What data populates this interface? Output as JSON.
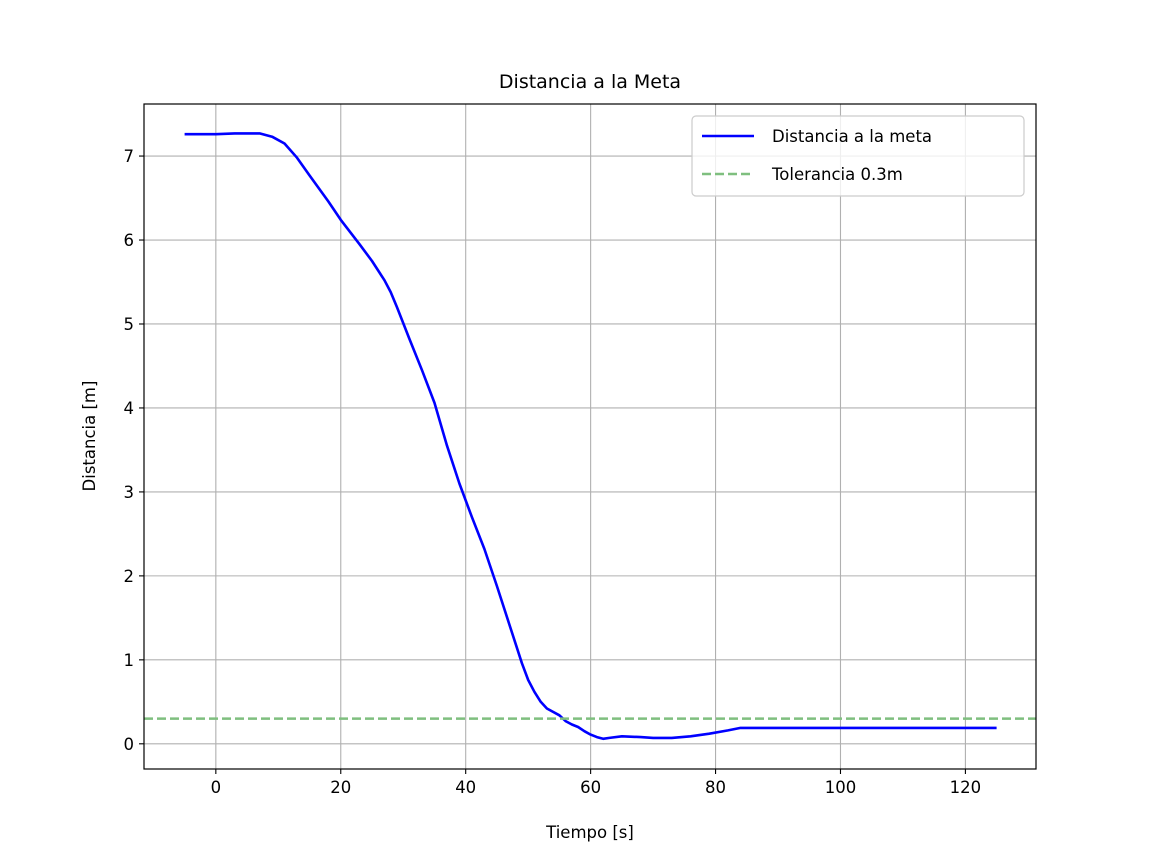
{
  "chart_data": {
    "type": "line",
    "title": "Distancia a la Meta",
    "xlabel": "Tiempo [s]",
    "ylabel": "Distancia [m]",
    "xlim": [
      -11.5,
      131.3
    ],
    "ylim": [
      -0.3,
      7.62
    ],
    "grid": true,
    "legend_position": "top-right",
    "xticks": [
      0,
      20,
      40,
      60,
      80,
      100,
      120
    ],
    "yticks": [
      0,
      1,
      2,
      3,
      4,
      5,
      6,
      7
    ],
    "series": [
      {
        "name": "Distancia a la meta",
        "color": "#0000ff",
        "style": "solid",
        "points": [
          [
            -5,
            7.26
          ],
          [
            0,
            7.26
          ],
          [
            3,
            7.27
          ],
          [
            7,
            7.27
          ],
          [
            9,
            7.23
          ],
          [
            11,
            7.15
          ],
          [
            13,
            6.98
          ],
          [
            15,
            6.77
          ],
          [
            18,
            6.46
          ],
          [
            20,
            6.24
          ],
          [
            23,
            5.95
          ],
          [
            25,
            5.75
          ],
          [
            27,
            5.52
          ],
          [
            28,
            5.38
          ],
          [
            29,
            5.2
          ],
          [
            31,
            4.82
          ],
          [
            33,
            4.45
          ],
          [
            35,
            4.06
          ],
          [
            37,
            3.55
          ],
          [
            39,
            3.1
          ],
          [
            41,
            2.7
          ],
          [
            43,
            2.32
          ],
          [
            45,
            1.88
          ],
          [
            47,
            1.42
          ],
          [
            49,
            0.96
          ],
          [
            50,
            0.76
          ],
          [
            51,
            0.62
          ],
          [
            52,
            0.5
          ],
          [
            53,
            0.42
          ],
          [
            54,
            0.38
          ],
          [
            55,
            0.34
          ],
          [
            56,
            0.27
          ],
          [
            57,
            0.23
          ],
          [
            58,
            0.2
          ],
          [
            59,
            0.15
          ],
          [
            60,
            0.11
          ],
          [
            61,
            0.08
          ],
          [
            62,
            0.06
          ],
          [
            63,
            0.07
          ],
          [
            65,
            0.09
          ],
          [
            68,
            0.08
          ],
          [
            70,
            0.07
          ],
          [
            73,
            0.07
          ],
          [
            76,
            0.09
          ],
          [
            79,
            0.12
          ],
          [
            82,
            0.16
          ],
          [
            84,
            0.19
          ],
          [
            90,
            0.19
          ],
          [
            100,
            0.19
          ],
          [
            110,
            0.19
          ],
          [
            120,
            0.19
          ],
          [
            125,
            0.19
          ]
        ]
      },
      {
        "name": "Tolerancia 0.3m",
        "color": "#7fbf7f",
        "style": "dashed",
        "y": 0.3
      }
    ]
  }
}
